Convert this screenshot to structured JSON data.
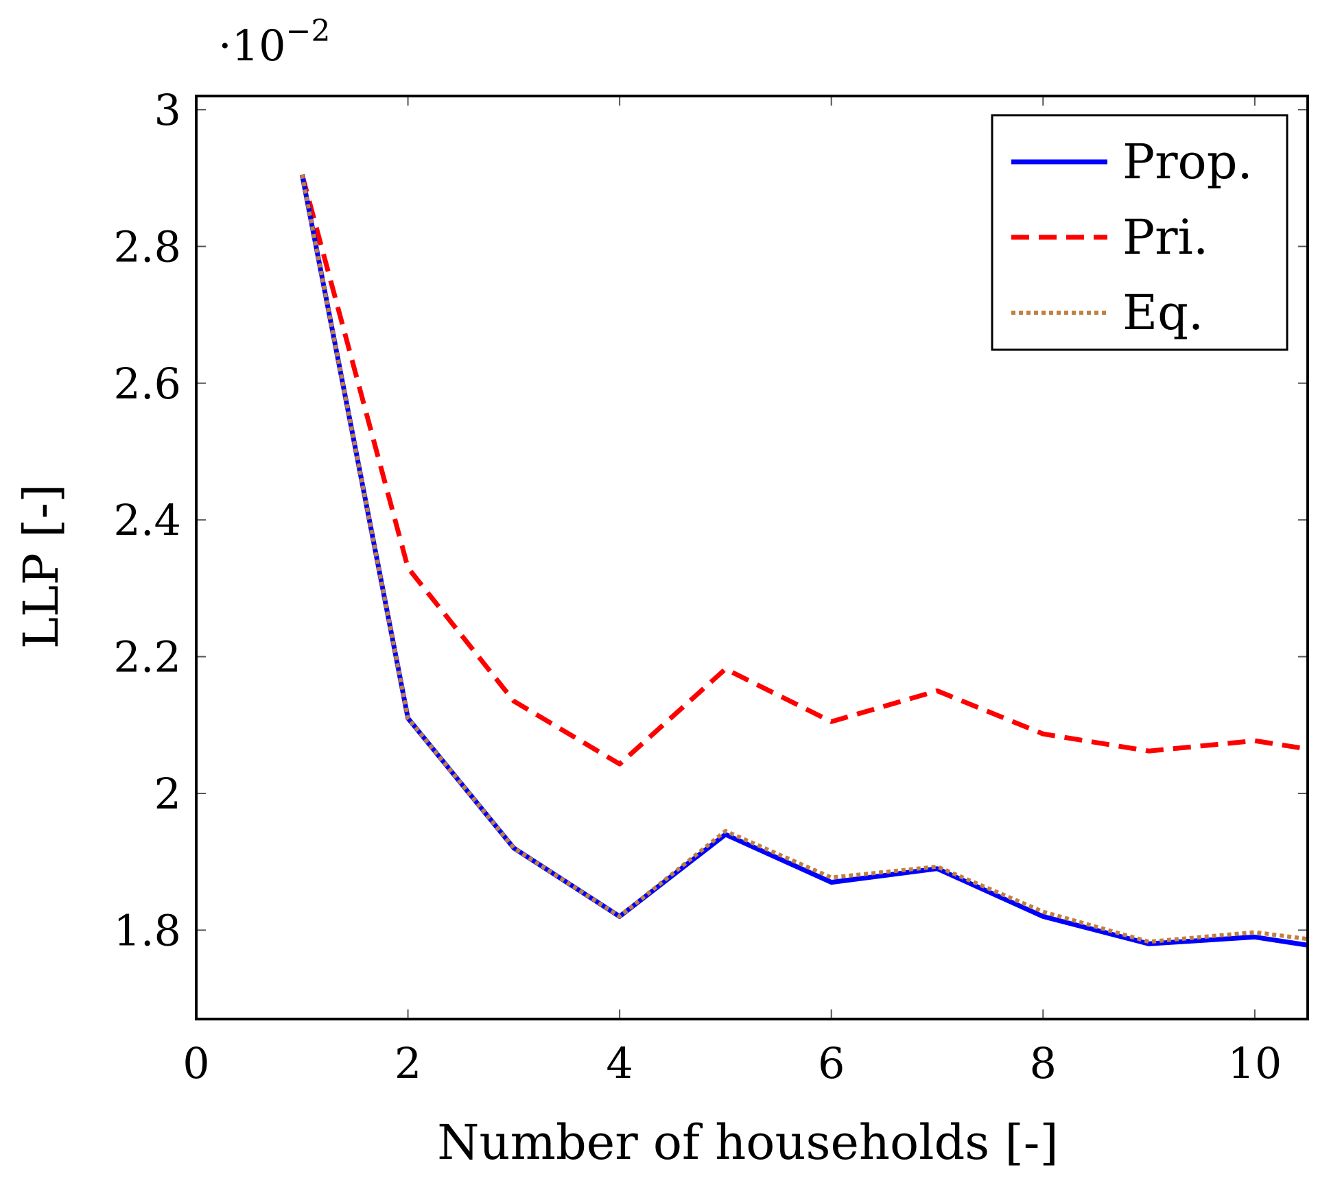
{
  "chart_data": {
    "type": "line",
    "title": "",
    "xlabel": "Number of households [-]",
    "ylabel": "LLP [-]",
    "y_multiplier": {
      "base": "·10",
      "exponent": "−2"
    },
    "xlim": [
      0,
      10.5
    ],
    "ylim": [
      1.67,
      3.02
    ],
    "xticks": [
      0,
      2,
      4,
      6,
      8,
      10
    ],
    "xtick_labels": [
      "0",
      "2",
      "4",
      "6",
      "8",
      "10"
    ],
    "yticks": [
      1.8,
      2.0,
      2.2,
      2.4,
      2.6,
      2.8,
      3.0
    ],
    "ytick_labels": [
      "1.8",
      "2",
      "2.2",
      "2.4",
      "2.6",
      "2.8",
      "3"
    ],
    "legend_position": "top-right",
    "series": [
      {
        "name": "Prop.",
        "color": "#0000ff",
        "style": "solid",
        "x": [
          1,
          2,
          3,
          4,
          5,
          6,
          7,
          8,
          9,
          10,
          10.5
        ],
        "y": [
          2.905,
          2.11,
          1.92,
          1.82,
          1.94,
          1.87,
          1.89,
          1.82,
          1.78,
          1.79,
          1.778
        ]
      },
      {
        "name": "Pri.",
        "color": "#ff0000",
        "style": "dashed",
        "x": [
          1,
          2,
          3,
          4,
          5,
          6,
          7,
          8,
          9,
          10,
          10.5
        ],
        "y": [
          2.905,
          2.33,
          2.135,
          2.043,
          2.182,
          2.105,
          2.15,
          2.087,
          2.062,
          2.077,
          2.065
        ]
      },
      {
        "name": "Eq.",
        "color": "#c08040",
        "style": "dotted",
        "x": [
          1,
          2,
          3,
          4,
          5,
          6,
          7,
          8,
          9,
          10,
          10.5
        ],
        "y": [
          2.905,
          2.11,
          1.92,
          1.82,
          1.945,
          1.877,
          1.893,
          1.827,
          1.783,
          1.797,
          1.787
        ]
      }
    ]
  }
}
